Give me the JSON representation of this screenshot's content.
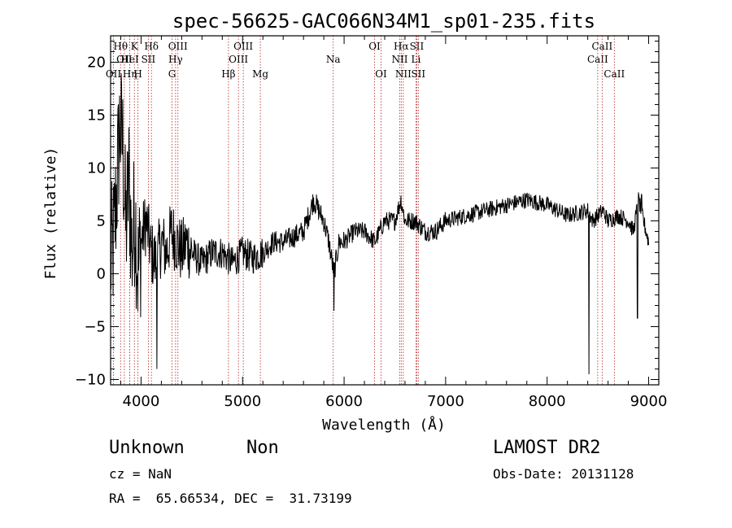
{
  "chart_data": {
    "type": "line",
    "title": "spec-56625-GAC066N34M1_sp01-235.fits",
    "xlabel": "Wavelength (Å)",
    "ylabel": "Flux (relative)",
    "xlim": [
      3700,
      9100
    ],
    "ylim": [
      -10.5,
      22.5
    ],
    "x_ticks": [
      4000,
      5000,
      6000,
      7000,
      8000,
      9000
    ],
    "y_ticks": [
      -10,
      -5,
      0,
      5,
      10,
      15,
      20
    ],
    "x_tick_labels": [
      "4000",
      "5000",
      "6000",
      "7000",
      "8000",
      "9000"
    ],
    "y_tick_labels": [
      "−10",
      "−5",
      "0",
      "5",
      "10",
      "15",
      "20"
    ],
    "grid": false,
    "series": [
      {
        "color": "#000000",
        "x": [
          3700,
          3730,
          3760,
          3790,
          3820,
          3850,
          3880,
          3910,
          3940,
          3970,
          4000,
          4050,
          4100,
          4150,
          4200,
          4250,
          4300,
          4350,
          4400,
          4450,
          4500,
          4600,
          4700,
          4800,
          4900,
          5000,
          5100,
          5200,
          5300,
          5400,
          5500,
          5600,
          5700,
          5750,
          5800,
          5850,
          5900,
          5950,
          6000,
          6100,
          6200,
          6300,
          6400,
          6500,
          6560,
          6600,
          6700,
          6800,
          6900,
          7000,
          7200,
          7400,
          7600,
          7800,
          8000,
          8200,
          8400,
          8450,
          8500,
          8550,
          8600,
          8700,
          8800,
          8850,
          8900,
          8950,
          9000
        ],
        "y": [
          1,
          3,
          8,
          14,
          12,
          4,
          9,
          2,
          6,
          0,
          3,
          5,
          2,
          1,
          3,
          2,
          4,
          3,
          2,
          3,
          2,
          1,
          2,
          2,
          1,
          2,
          1.5,
          2,
          3,
          3,
          3.5,
          4,
          7,
          6,
          5,
          3,
          0,
          3,
          3,
          4,
          4,
          3,
          5,
          5,
          7,
          5,
          5,
          4,
          4,
          5,
          5.5,
          6,
          6.5,
          7,
          6.5,
          5.5,
          6,
          5,
          5.5,
          6,
          5,
          5.5,
          5,
          4,
          7,
          5,
          3
        ]
      }
    ],
    "spike_markers": [
      {
        "x": 4155,
        "y": -9
      },
      {
        "x": 5900,
        "y": -3.5
      },
      {
        "x": 8412,
        "y": -9.5
      },
      {
        "x": 8890,
        "y": -4.2
      },
      {
        "x": 8930,
        "y": 7.5
      }
    ],
    "line_markers": [
      {
        "wl": 3798,
        "label": "Hθ",
        "row": 0
      },
      {
        "wl": 3835,
        "label": "OII",
        "row": 1
      },
      {
        "wl": 3728,
        "label": "OII",
        "row": 2
      },
      {
        "wl": 3889,
        "label": "HeI",
        "row": 1
      },
      {
        "wl": 3934,
        "label": "K",
        "row": 0
      },
      {
        "wl": 3969,
        "label": "H",
        "row": 2
      },
      {
        "wl": 3889,
        "label": "Hη",
        "row": 2
      },
      {
        "wl": 4072,
        "label": "SII",
        "row": 1
      },
      {
        "wl": 4102,
        "label": "Hδ",
        "row": 0
      },
      {
        "wl": 4305,
        "label": "G",
        "row": 2
      },
      {
        "wl": 4340,
        "label": "Hγ",
        "row": 1
      },
      {
        "wl": 4363,
        "label": "OIII",
        "row": 0
      },
      {
        "wl": 4861,
        "label": "Hβ",
        "row": 2
      },
      {
        "wl": 4959,
        "label": "OIII",
        "row": 1
      },
      {
        "wl": 5007,
        "label": "OIII",
        "row": 0
      },
      {
        "wl": 5175,
        "label": "Mg",
        "row": 2
      },
      {
        "wl": 5893,
        "label": "Na",
        "row": 1
      },
      {
        "wl": 6300,
        "label": "OI",
        "row": 0
      },
      {
        "wl": 6364,
        "label": "OI",
        "row": 2
      },
      {
        "wl": 6548,
        "label": "NII",
        "row": 1
      },
      {
        "wl": 6563,
        "label": "Hα",
        "row": 0
      },
      {
        "wl": 6583,
        "label": "NII",
        "row": 2
      },
      {
        "wl": 6708,
        "label": "Li",
        "row": 1
      },
      {
        "wl": 6716,
        "label": "SII",
        "row": 0
      },
      {
        "wl": 6731,
        "label": "SII",
        "row": 2
      },
      {
        "wl": 8498,
        "label": "CaII",
        "row": 1
      },
      {
        "wl": 8542,
        "label": "CaII",
        "row": 0
      },
      {
        "wl": 8662,
        "label": "CaII",
        "row": 2
      }
    ]
  },
  "info": {
    "class_label": "Unknown",
    "subclass_label": "Non",
    "survey_label": "LAMOST DR2",
    "cz_text": "cz = NaN",
    "obs_date_text": "Obs-Date: 20131128",
    "coords_text": "RA =  65.66534, DEC =  31.73199"
  },
  "colors": {
    "spectrum": "#000000",
    "marker_lines": "#b22222",
    "axes": "#000000",
    "background": "#ffffff"
  }
}
